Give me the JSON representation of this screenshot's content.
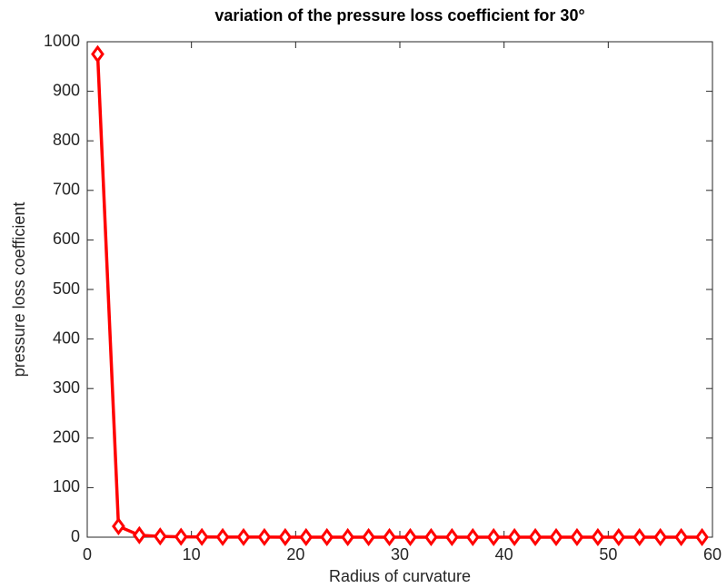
{
  "chart_data": {
    "type": "line",
    "title": "variation of the pressure loss coefficient for 30°",
    "x_label": "Radius of curvature",
    "y_label": "pressure loss coefficient",
    "x": [
      1,
      3,
      5,
      7,
      9,
      11,
      13,
      15,
      17,
      19,
      21,
      23,
      25,
      27,
      29,
      31,
      33,
      35,
      37,
      39,
      41,
      43,
      45,
      47,
      49,
      51,
      53,
      55,
      57,
      59
    ],
    "series": [
      {
        "name": "pressure loss coefficient",
        "color": "#ff0000",
        "values": [
          975,
          22,
          4,
          1.5,
          0.8,
          0.5,
          0.3,
          0.2,
          0.2,
          0.1,
          0.1,
          0.1,
          0.1,
          0.1,
          0.1,
          0.1,
          0.1,
          0.1,
          0.1,
          0.1,
          0.1,
          0.1,
          0.1,
          0.1,
          0.1,
          0.1,
          0.1,
          0.1,
          0.1,
          0.1
        ]
      }
    ],
    "xlim": [
      0,
      60
    ],
    "xticks": [
      0,
      10,
      20,
      30,
      40,
      50,
      60
    ],
    "ylim": [
      0,
      1000
    ],
    "yticks": [
      0,
      100,
      200,
      300,
      400,
      500,
      600,
      700,
      800,
      900,
      1000
    ],
    "grid": false,
    "marker": "diamond"
  }
}
